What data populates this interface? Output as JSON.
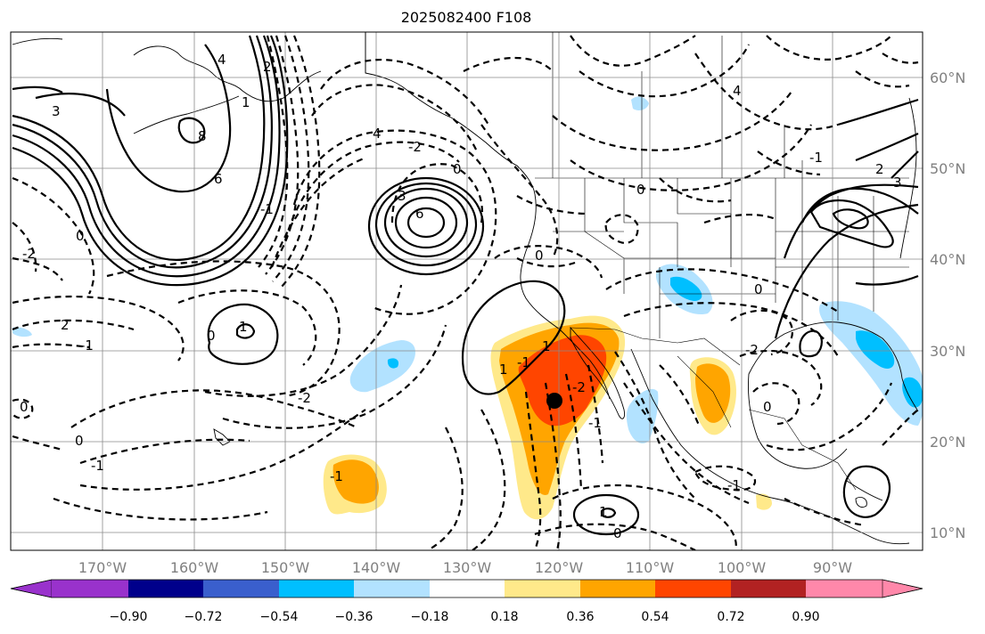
{
  "title": "2025082400 F108",
  "map": {
    "lon_labels": [
      "170°W",
      "160°W",
      "150°W",
      "140°W",
      "130°W",
      "120°W",
      "110°W",
      "100°W",
      "90°W"
    ],
    "lat_labels": [
      "60°N",
      "50°N",
      "40°N",
      "30°N",
      "20°N",
      "10°N"
    ],
    "marker": "storm-center-dot"
  },
  "colorbar": {
    "tick_labels": [
      "−0.90",
      "−0.72",
      "−0.54",
      "−0.36",
      "−0.18",
      "0.18",
      "0.36",
      "0.54",
      "0.72",
      "0.90"
    ],
    "colors": [
      "#9932cc",
      "#00008b",
      "#3a5fcd",
      "#00bfff",
      "#b2e2ff",
      "#ffffff",
      "#ffe98a",
      "#ffa500",
      "#ff4500",
      "#b22222",
      "#ff88aa"
    ]
  },
  "contour_labels": [
    "3",
    "4",
    "8",
    "6",
    "1",
    "2",
    "0",
    "-2",
    "-1",
    "2",
    "4",
    "6",
    "3",
    "0",
    "-2",
    "1",
    "-1",
    "0",
    "-1",
    "0",
    "-2",
    "-1",
    "0",
    "-1",
    "1",
    "0",
    "4",
    "0",
    "0",
    "-1",
    "-2",
    "2",
    "3",
    "1",
    "0",
    "-1",
    "-1",
    "1",
    "-2",
    "0"
  ]
}
